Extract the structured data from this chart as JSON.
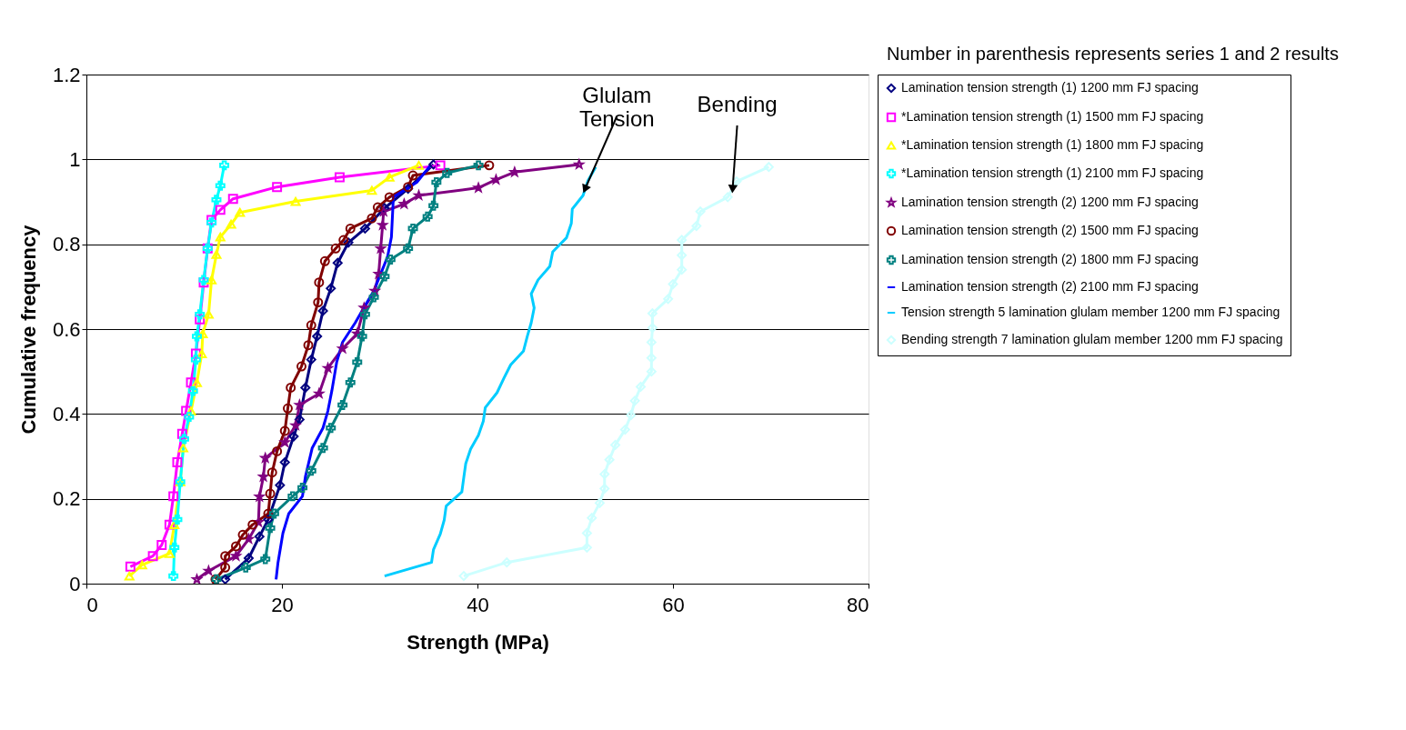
{
  "chart_data": {
    "type": "line",
    "xlabel": "Strength (MPa)",
    "ylabel": "Cumulative frequency",
    "xlim": [
      0,
      80
    ],
    "xticks": [
      0,
      20,
      40,
      60,
      80
    ],
    "ylim": [
      0,
      1.2
    ],
    "yticks": [
      0,
      0.2,
      0.4,
      0.6,
      0.8,
      1,
      1.2
    ],
    "grid": "y",
    "legend": "right",
    "annotations": [
      "Number in parenthesis represents series 1 and 2 results",
      {
        "text": "Glulam Tension",
        "x": 51.0,
        "y": 0.93
      },
      {
        "text": "Bending",
        "x": 66.1,
        "y": 0.93
      }
    ],
    "series": [
      {
        "name": "Lamination tension strength (1) 1200 mm FJ spacing",
        "color": "#000080",
        "marker": "diamond",
        "x": [
          14.2,
          16.6,
          17.7,
          18.6,
          19.8,
          20.3,
          21.2,
          21.8,
          22.4,
          23.0,
          23.6,
          24.2,
          25.0,
          25.7,
          26.8,
          28.5,
          30.5,
          32.9,
          35.5
        ],
        "values": [
          0.01,
          0.06,
          0.111,
          0.151,
          0.232,
          0.286,
          0.347,
          0.387,
          0.462,
          0.528,
          0.583,
          0.643,
          0.696,
          0.756,
          0.804,
          0.837,
          0.885,
          0.931,
          0.988
        ]
      },
      {
        "name": "*Lamination tension strength (1) 1500 mm FJ spacing",
        "color": "#ff00ff",
        "marker": "square",
        "x": [
          4.5,
          6.8,
          7.7,
          8.5,
          8.9,
          9.3,
          9.8,
          10.2,
          10.7,
          11.2,
          11.6,
          12.0,
          12.4,
          12.8,
          13.7,
          15.0,
          19.5,
          25.9,
          36.2
        ],
        "values": [
          0.04,
          0.065,
          0.091,
          0.139,
          0.206,
          0.286,
          0.353,
          0.407,
          0.474,
          0.542,
          0.623,
          0.71,
          0.79,
          0.857,
          0.881,
          0.907,
          0.935,
          0.958,
          0.986
        ]
      },
      {
        "name": "*Lamination tension strength (1) 1800 mm FJ spacing",
        "color": "#ffff00",
        "marker": "triangle",
        "x": [
          4.4,
          5.7,
          8.5,
          9.0,
          9.6,
          9.9,
          10.7,
          11.3,
          11.8,
          11.9,
          12.5,
          12.8,
          13.3,
          13.7,
          14.8,
          15.7,
          21.4,
          29.2,
          31.0,
          34.0
        ],
        "values": [
          0.018,
          0.044,
          0.071,
          0.139,
          0.24,
          0.32,
          0.407,
          0.474,
          0.542,
          0.589,
          0.635,
          0.716,
          0.776,
          0.817,
          0.847,
          0.875,
          0.901,
          0.927,
          0.958,
          0.986
        ]
      },
      {
        "name": "*Lamination tension strength (1) 2100 mm FJ spacing",
        "color": "#00ffff",
        "marker": "cross",
        "x": [
          8.9,
          9.0,
          9.3,
          9.6,
          10.0,
          10.5,
          10.9,
          11.2,
          11.3,
          11.6,
          12.0,
          12.4,
          12.8,
          13.3,
          13.7,
          14.1
        ],
        "values": [
          0.018,
          0.085,
          0.151,
          0.24,
          0.341,
          0.393,
          0.454,
          0.528,
          0.583,
          0.635,
          0.716,
          0.79,
          0.851,
          0.905,
          0.938,
          0.986
        ]
      },
      {
        "name": "Lamination tension strength (2) 1200 mm FJ spacing",
        "color": "#800080",
        "marker": "star",
        "x": [
          11.3,
          12.5,
          15.3,
          16.6,
          17.6,
          17.7,
          18.1,
          18.3,
          20.3,
          21.4,
          21.8,
          23.8,
          24.7,
          26.2,
          27.7,
          28.4,
          29.5,
          29.9,
          30.1,
          30.3,
          30.4,
          32.5,
          34.0,
          40.1,
          41.9,
          43.8,
          50.4
        ],
        "values": [
          0.01,
          0.03,
          0.065,
          0.105,
          0.145,
          0.205,
          0.252,
          0.296,
          0.333,
          0.373,
          0.421,
          0.448,
          0.508,
          0.554,
          0.589,
          0.65,
          0.69,
          0.73,
          0.79,
          0.845,
          0.877,
          0.895,
          0.915,
          0.933,
          0.952,
          0.97,
          0.988
        ]
      },
      {
        "name": "Lamination tension strength (2) 1500 mm FJ spacing",
        "color": "#800000",
        "marker": "circle",
        "x": [
          13.2,
          14.2,
          14.2,
          15.3,
          16.0,
          17.0,
          18.6,
          18.8,
          19.0,
          19.5,
          20.3,
          20.6,
          20.9,
          22.0,
          22.7,
          23.0,
          23.7,
          23.8,
          24.4,
          25.5,
          26.3,
          27.0,
          29.2,
          29.8,
          31.0,
          32.9,
          33.4,
          41.2
        ],
        "values": [
          0.01,
          0.038,
          0.065,
          0.088,
          0.115,
          0.139,
          0.165,
          0.212,
          0.262,
          0.312,
          0.36,
          0.413,
          0.462,
          0.512,
          0.562,
          0.609,
          0.663,
          0.71,
          0.76,
          0.79,
          0.81,
          0.837,
          0.861,
          0.887,
          0.911,
          0.935,
          0.962,
          0.986
        ]
      },
      {
        "name": "Lamination tension strength (2) 1800 mm FJ spacing",
        "color": "#008080",
        "marker": "cross",
        "x": [
          13.3,
          16.3,
          18.3,
          18.8,
          19.2,
          21.1,
          22.1,
          23.0,
          24.2,
          25.0,
          26.2,
          27.0,
          27.7,
          28.2,
          28.5,
          29.4,
          30.5,
          31.1,
          32.9,
          33.4,
          34.9,
          35.5,
          35.8,
          36.9,
          40.1
        ],
        "values": [
          0.01,
          0.038,
          0.058,
          0.131,
          0.165,
          0.206,
          0.226,
          0.266,
          0.32,
          0.367,
          0.421,
          0.474,
          0.522,
          0.583,
          0.635,
          0.675,
          0.724,
          0.764,
          0.79,
          0.837,
          0.865,
          0.891,
          0.946,
          0.968,
          0.986
        ]
      },
      {
        "name": "Lamination tension strength (2) 2100 mm FJ spacing",
        "color": "#0000ff",
        "marker": "none",
        "x": [
          19.4,
          19.6,
          20.1,
          20.7,
          22.1,
          22.4,
          23.1,
          24.2,
          24.7,
          25.1,
          25.6,
          26.2,
          27.5,
          28.5,
          29.4,
          30.1,
          30.8,
          31.2,
          31.4,
          33.8,
          35.2
        ],
        "values": [
          0.01,
          0.05,
          0.119,
          0.165,
          0.206,
          0.252,
          0.32,
          0.367,
          0.407,
          0.454,
          0.522,
          0.569,
          0.615,
          0.655,
          0.69,
          0.73,
          0.77,
          0.817,
          0.911,
          0.946,
          0.986
        ]
      },
      {
        "name": "Tension strength 5 lamination glulam member 1200 mm FJ spacing",
        "color": "#00ccff",
        "marker": "none",
        "x": [
          30.5,
          35.3,
          35.5,
          36.2,
          36.6,
          36.8,
          38.4,
          38.6,
          38.8,
          39.3,
          40.1,
          40.6,
          40.8,
          42.0,
          42.7,
          43.4,
          44.7,
          45.1,
          45.5,
          45.8,
          45.5,
          46.2,
          47.4,
          47.7,
          49.1,
          49.6,
          49.7,
          50.8,
          51.3,
          52.1
        ],
        "values": [
          0.018,
          0.05,
          0.08,
          0.117,
          0.15,
          0.183,
          0.216,
          0.25,
          0.283,
          0.317,
          0.35,
          0.383,
          0.415,
          0.45,
          0.484,
          0.516,
          0.548,
          0.583,
          0.615,
          0.65,
          0.683,
          0.716,
          0.748,
          0.782,
          0.815,
          0.849,
          0.883,
          0.915,
          0.95,
          0.982
        ]
      },
      {
        "name": "Bending strength 7 lamination glulam member 1200 mm FJ spacing",
        "color": "#ccffff",
        "marker": "diamond",
        "x": [
          38.6,
          43.0,
          51.2,
          51.2,
          51.7,
          52.5,
          53.0,
          53.0,
          53.5,
          54.1,
          55.1,
          55.7,
          56.1,
          56.7,
          57.8,
          57.8,
          57.8,
          57.9,
          57.9,
          59.5,
          60.0,
          60.9,
          60.9,
          60.9,
          62.4,
          62.8,
          65.6,
          66.5,
          69.8
        ],
        "values": [
          0.018,
          0.05,
          0.085,
          0.119,
          0.155,
          0.19,
          0.224,
          0.258,
          0.292,
          0.327,
          0.363,
          0.397,
          0.431,
          0.464,
          0.5,
          0.532,
          0.569,
          0.603,
          0.637,
          0.671,
          0.706,
          0.74,
          0.774,
          0.81,
          0.843,
          0.877,
          0.911,
          0.948,
          0.982
        ]
      }
    ]
  }
}
